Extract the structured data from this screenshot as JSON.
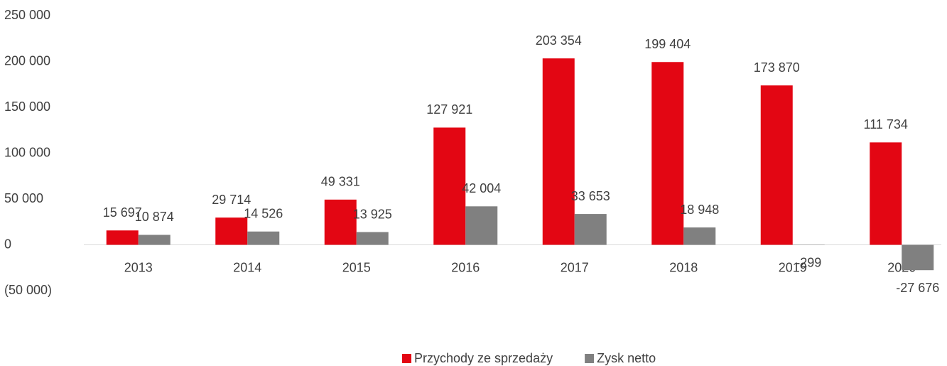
{
  "chart_data": {
    "type": "bar",
    "categories": [
      "2013",
      "2014",
      "2015",
      "2016",
      "2017",
      "2018",
      "2019",
      "2020"
    ],
    "series": [
      {
        "name": "Przychody ze sprzedaży",
        "color": "#e30613",
        "values": [
          15697,
          29714,
          49331,
          127921,
          203354,
          199404,
          173870,
          111734
        ],
        "value_labels": [
          "15 697",
          "29 714",
          "49 331",
          "127 921",
          "203 354",
          "199 404",
          "173 870",
          "111 734"
        ]
      },
      {
        "name": "Zysk netto",
        "color": "#808080",
        "values": [
          10874,
          14526,
          13925,
          42004,
          33653,
          18948,
          -299,
          -27676
        ],
        "value_labels": [
          "10 874",
          "14 526",
          "13 925",
          "42 004",
          "33 653",
          "18 948",
          "-299",
          "-27 676"
        ]
      }
    ],
    "ylim": [
      -50000,
      250000
    ],
    "yticks": [
      {
        "value": -50000,
        "label": "(50 000)"
      },
      0,
      {
        "value": 50000,
        "label": "50 000"
      },
      {
        "value": 100000,
        "label": "100 000"
      },
      {
        "value": 150000,
        "label": "150 000"
      },
      {
        "value": 200000,
        "label": "200 000"
      },
      {
        "value": 250000,
        "label": "250 000"
      }
    ],
    "grid": false,
    "legend": "bottom"
  }
}
